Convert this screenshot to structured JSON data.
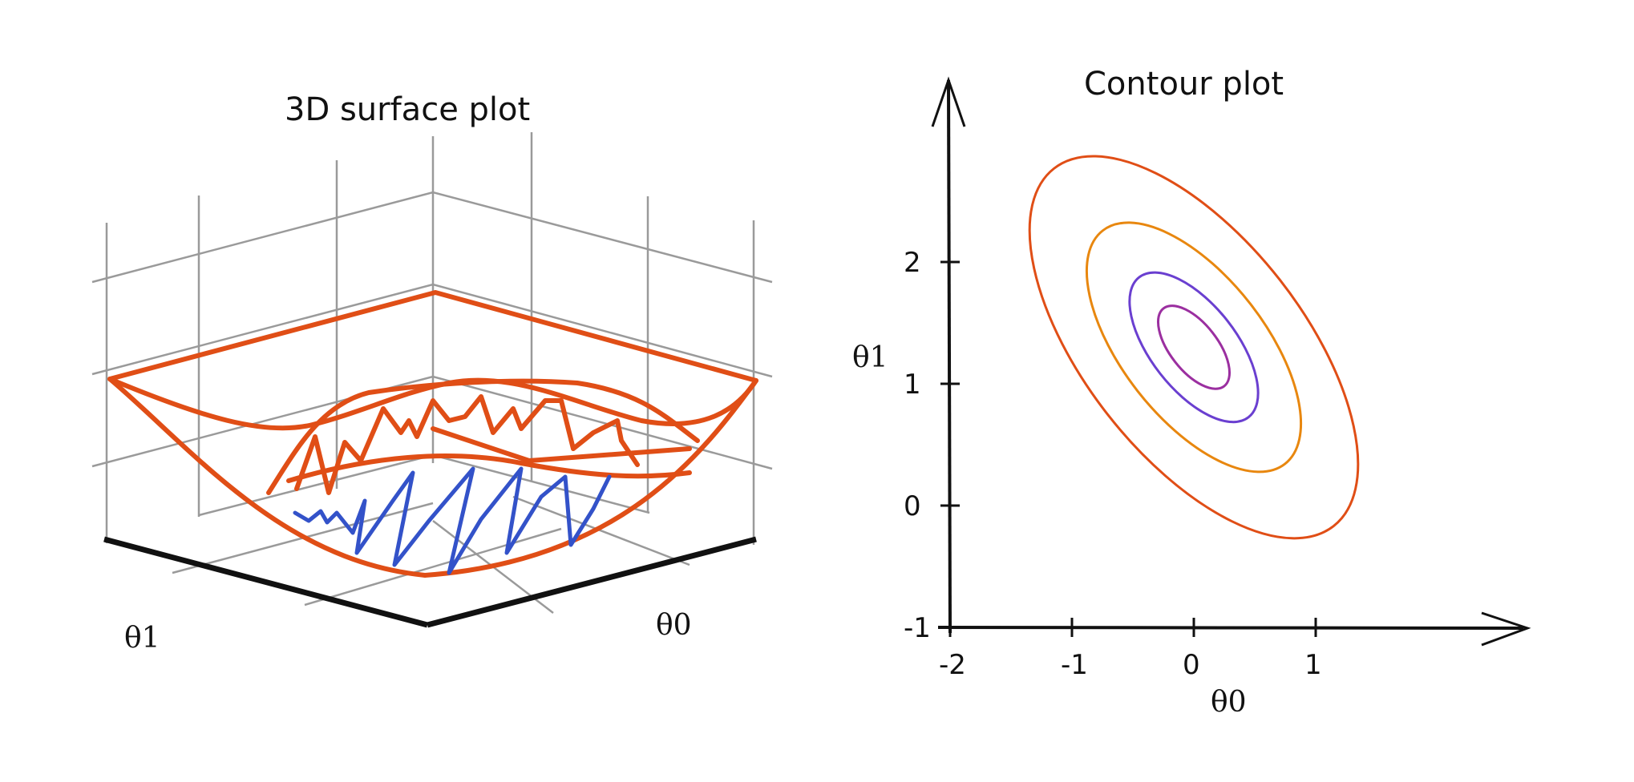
{
  "chart_data": [
    {
      "type": "surface3d",
      "title": "3D surface plot",
      "xlabel": "θ0",
      "ylabel": "θ1",
      "colors": {
        "surface": "#e04e16",
        "trace": "#3352c9",
        "axes": "#111111",
        "grid": "#9a9a9a"
      }
    },
    {
      "type": "contour",
      "title": "Contour plot",
      "xlabel": "θ0",
      "ylabel": "θ1",
      "xticks": [
        "-2",
        "-1",
        "0",
        "1"
      ],
      "yticks": [
        "-1",
        "0",
        "1",
        "2"
      ],
      "xlim": [
        -2,
        2.7
      ],
      "ylim": [
        -1,
        3.2
      ],
      "center": [
        0,
        1.3
      ],
      "levels": [
        {
          "rx": 0.25,
          "ry": 0.25,
          "color": "#9b2fa0"
        },
        {
          "rx": 0.45,
          "ry": 0.45,
          "color": "#6a3fd0"
        },
        {
          "rx": 0.75,
          "ry": 0.75,
          "color": "#e8870f"
        },
        {
          "rx": 1.15,
          "ry": 1.15,
          "color": "#e04e16"
        }
      ]
    }
  ]
}
